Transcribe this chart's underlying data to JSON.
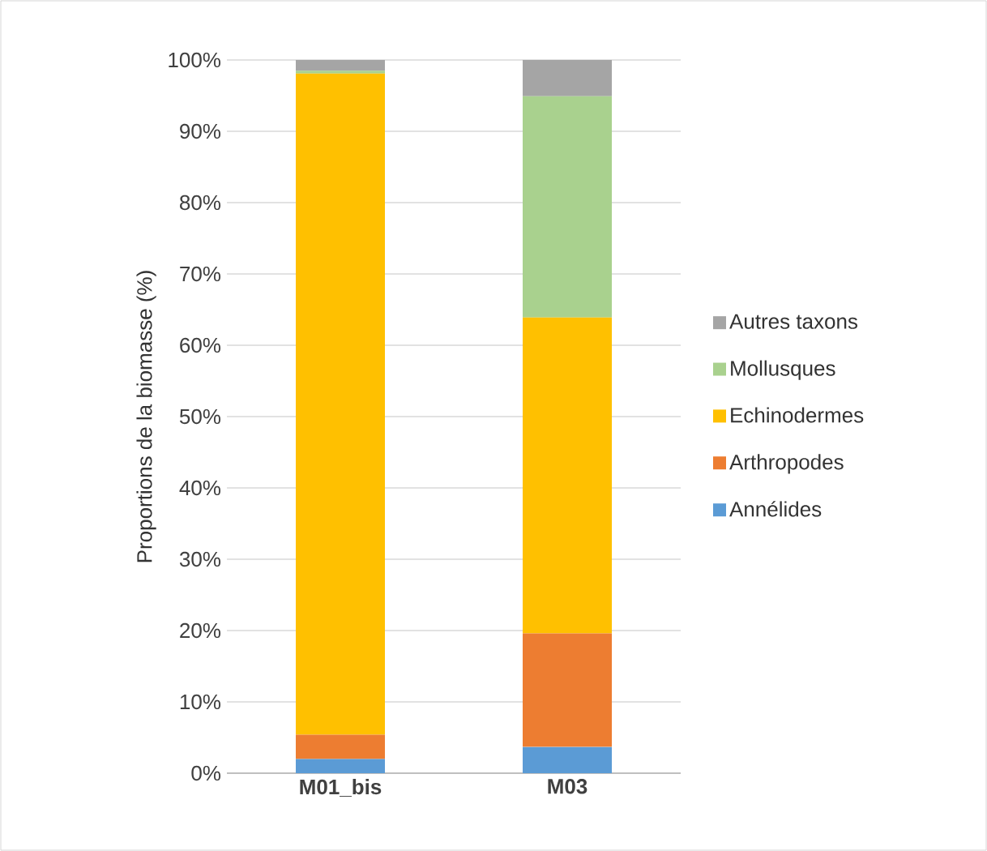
{
  "chart_data": {
    "type": "bar",
    "stacked": true,
    "ylabel": "Proportions de la biomasse (%)",
    "categories": [
      "M01_bis",
      "M03"
    ],
    "series": [
      {
        "name": "Annélides",
        "color": "#5b9bd5",
        "values": [
          2.0,
          3.7
        ]
      },
      {
        "name": "Arthropodes",
        "color": "#ed7d31",
        "values": [
          3.4,
          15.9
        ]
      },
      {
        "name": "Echinodermes",
        "color": "#ffc000",
        "values": [
          92.7,
          44.3
        ]
      },
      {
        "name": "Mollusques",
        "color": "#a9d18e",
        "values": [
          0.4,
          31.0
        ]
      },
      {
        "name": "Autres taxons",
        "color": "#a5a5a5",
        "values": [
          1.5,
          5.1
        ]
      }
    ],
    "ylim": [
      0,
      100
    ],
    "yticks": [
      {
        "value": 0,
        "label": "0%"
      },
      {
        "value": 10,
        "label": "10%"
      },
      {
        "value": 20,
        "label": "20%"
      },
      {
        "value": 30,
        "label": "30%"
      },
      {
        "value": 40,
        "label": "40%"
      },
      {
        "value": 50,
        "label": "50%"
      },
      {
        "value": 60,
        "label": "60%"
      },
      {
        "value": 70,
        "label": "70%"
      },
      {
        "value": 80,
        "label": "80%"
      },
      {
        "value": 90,
        "label": "90%"
      },
      {
        "value": 100,
        "label": "100%"
      }
    ],
    "grid": "y",
    "legend": "right"
  }
}
